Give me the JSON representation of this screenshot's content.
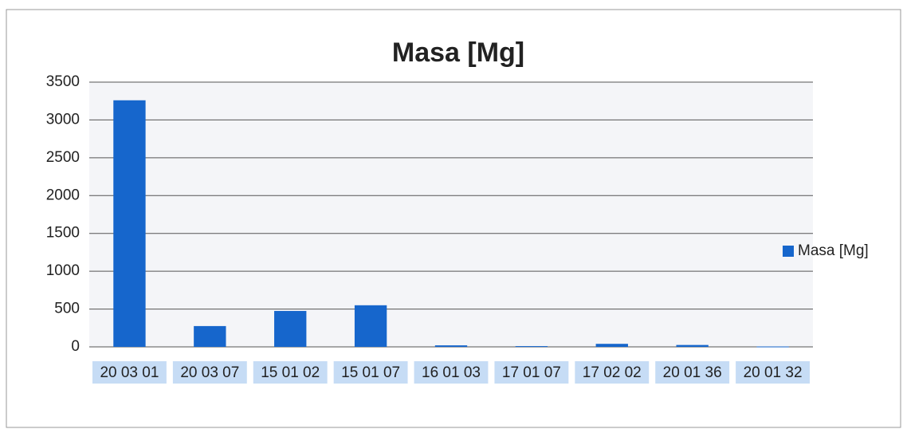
{
  "chart_data": {
    "type": "bar",
    "title": "Masa [Mg]",
    "categories": [
      "20 03 01",
      "20 03 07",
      "15 01 02",
      "15 01 07",
      "16 01 03",
      "17 01 07",
      "17 02 02",
      "20 01 36",
      "20 01 32"
    ],
    "series": [
      {
        "name": "Masa [Mg]",
        "color": "#1666cc",
        "values": [
          3260,
          275,
          475,
          550,
          20,
          10,
          40,
          25,
          5
        ]
      }
    ],
    "ylim": [
      0,
      3500
    ],
    "yticks": [
      0,
      500,
      1000,
      1500,
      2000,
      2500,
      3000,
      3500
    ],
    "grid": true,
    "legend": "right"
  }
}
